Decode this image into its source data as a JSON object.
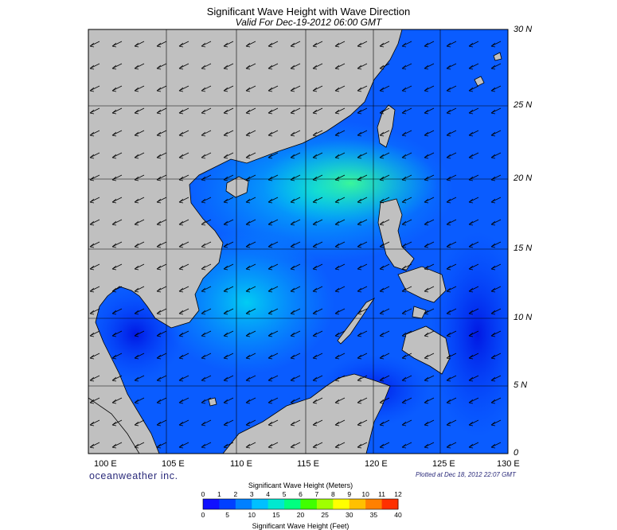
{
  "header": {
    "title": "Significant Wave Height with Wave Direction",
    "subtitle": "Valid For Dec-19-2012 06:00 GMT"
  },
  "map": {
    "lat_labels": [
      "30 N",
      "25 N",
      "20 N",
      "15 N",
      "10 N",
      "5 N",
      "0"
    ],
    "lon_labels": [
      "100 E",
      "105 E",
      "110 E",
      "115 E",
      "120 E",
      "125 E",
      "130 E"
    ],
    "land_color": "#c0c0c0",
    "coast_color": "#000000",
    "wave_direction": "arrows pointing toward southwest"
  },
  "footer": {
    "brand": "oceanweather inc.",
    "plotted": "Plotted at Dec 18, 2012 22:07 GMT"
  },
  "colorbar": {
    "title_meters": "Significant Wave Height (Meters)",
    "title_feet": "Significant Wave Height (Feet)",
    "meters_ticks": [
      "0",
      "1",
      "2",
      "3",
      "4",
      "5",
      "6",
      "7",
      "8",
      "9",
      "10",
      "11",
      "12"
    ],
    "feet_ticks": [
      "0",
      "5",
      "10",
      "15",
      "20",
      "25",
      "30",
      "35",
      "40"
    ],
    "colors": [
      "#1010ff",
      "#0040ff",
      "#0080ff",
      "#00c0ff",
      "#00e8d0",
      "#00ff80",
      "#40ff00",
      "#a0ff00",
      "#ffff00",
      "#ffc000",
      "#ff8000",
      "#ff3000"
    ]
  }
}
